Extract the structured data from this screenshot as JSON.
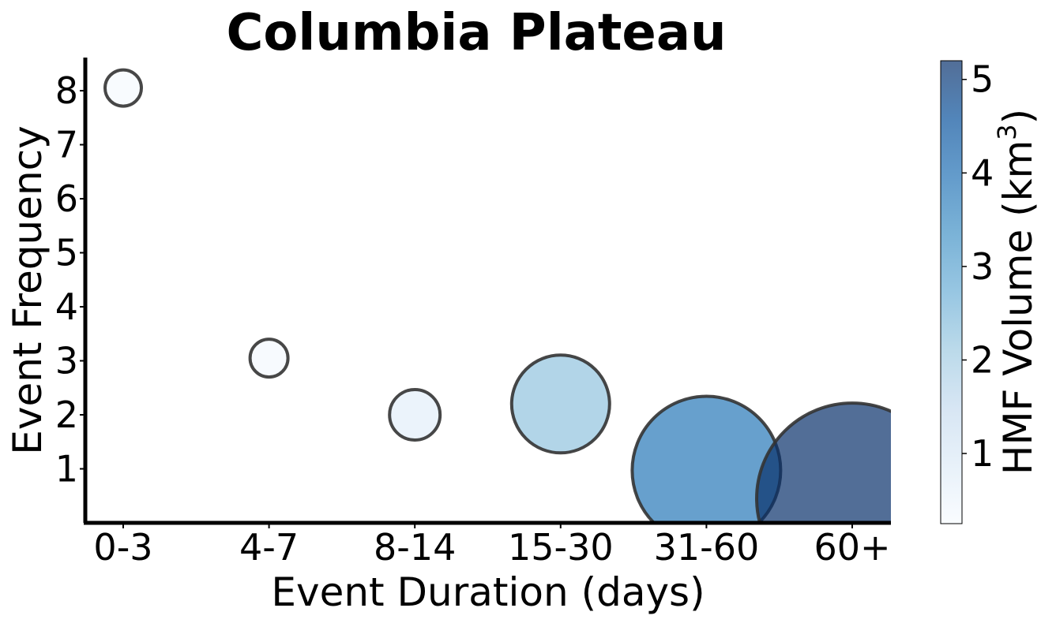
{
  "chart_data": {
    "type": "scatter",
    "title": "Columbia Plateau",
    "xlabel": "Event Duration (days)",
    "ylabel": "Event Frequency",
    "categories": [
      "0-3",
      "4-7",
      "8-14",
      "15-30",
      "31-60",
      "60+"
    ],
    "points": [
      {
        "x": "0-3",
        "y": 8.05,
        "volume": 0.3
      },
      {
        "x": "4-7",
        "y": 3.05,
        "volume": 0.35
      },
      {
        "x": "8-14",
        "y": 2.0,
        "volume": 0.75
      },
      {
        "x": "15-30",
        "y": 2.2,
        "volume": 2.25
      },
      {
        "x": "31-60",
        "y": 0.97,
        "volume": 3.85
      },
      {
        "x": "60+",
        "y": 0.45,
        "volume": 5.2
      }
    ],
    "ylim": [
      0,
      8.5
    ],
    "yticks": [
      1,
      2,
      3,
      4,
      5,
      6,
      7,
      8
    ],
    "grid": false,
    "colorbar": {
      "label": "HMF Volume (km³)",
      "label_main": "HMF Volume (km",
      "label_sup": "3",
      "label_end": ")",
      "range": [
        0.25,
        5.2
      ],
      "ticks": [
        1,
        2,
        3,
        4,
        5
      ],
      "colormap": "Blues",
      "colors": [
        "#f7fbff",
        "#deebf7",
        "#c6dbef",
        "#9ecae1",
        "#6baed6",
        "#4292c6",
        "#2171b5",
        "#08519c",
        "#08306b"
      ]
    },
    "marker_edge_color": "#333333",
    "marker_alpha": 0.7
  }
}
